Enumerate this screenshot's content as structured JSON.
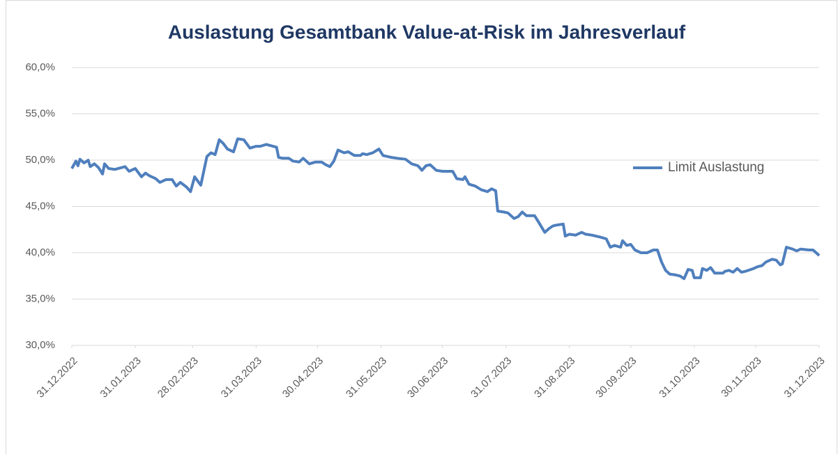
{
  "chart_data": {
    "type": "line",
    "title": "Auslastung Gesamtbank Value-at-Risk im Jahresverlauf",
    "x": [
      "31.12.2022",
      "02.01.2023",
      "03.01.2023",
      "04.01.2023",
      "06.01.2023",
      "08.01.2023",
      "09.01.2023",
      "11.01.2023",
      "13.01.2023",
      "15.01.2023",
      "16.01.2023",
      "18.01.2023",
      "21.01.2023",
      "26.01.2023",
      "28.01.2023",
      "31.01.2023",
      "03.02.2023",
      "05.02.2023",
      "07.02.2023",
      "10.02.2023",
      "12.02.2023",
      "15.02.2023",
      "18.02.2023",
      "20.02.2023",
      "22.02.2023",
      "25.02.2023",
      "27.02.2023",
      "01.03.2023",
      "04.03.2023",
      "07.03.2023",
      "09.03.2023",
      "11.03.2023",
      "13.03.2023",
      "15.03.2023",
      "17.03.2023",
      "20.03.2023",
      "22.03.2023",
      "25.03.2023",
      "28.03.2023",
      "31.03.2023",
      "02.04.2023",
      "05.04.2023",
      "10.04.2023",
      "11.04.2023",
      "13.04.2023",
      "16.04.2023",
      "18.04.2023",
      "21.04.2023",
      "23.04.2023",
      "26.04.2023",
      "29.04.2023",
      "02.05.2023",
      "04.05.2023",
      "06.05.2023",
      "08.05.2023",
      "10.05.2023",
      "13.05.2023",
      "15.05.2023",
      "18.05.2023",
      "21.05.2023",
      "22.05.2023",
      "24.05.2023",
      "27.05.2023",
      "30.05.2023",
      "01.06.2023",
      "05.06.2023",
      "08.06.2023",
      "12.06.2023",
      "15.06.2023",
      "18.06.2023",
      "20.06.2023",
      "22.06.2023",
      "24.06.2023",
      "27.06.2023",
      "30.06.2023",
      "05.07.2023",
      "07.07.2023",
      "10.07.2023",
      "11.07.2023",
      "13.07.2023",
      "16.07.2023",
      "19.07.2023",
      "22.07.2023",
      "24.07.2023",
      "26.07.2023",
      "27.07.2023",
      "30.07.2023",
      "01.08.2023",
      "04.08.2023",
      "06.08.2023",
      "08.08.2023",
      "10.08.2023",
      "14.08.2023",
      "16.08.2023",
      "19.08.2023",
      "21.08.2023",
      "23.08.2023",
      "25.08.2023",
      "28.08.2023",
      "29.08.2023",
      "31.08.2023",
      "03.09.2023",
      "06.09.2023",
      "08.09.2023",
      "11.09.2023",
      "15.09.2023",
      "18.09.2023",
      "20.09.2023",
      "22.09.2023",
      "25.09.2023",
      "26.09.2023",
      "28.09.2023",
      "30.09.2023",
      "02.10.2023",
      "05.10.2023",
      "08.10.2023",
      "11.10.2023",
      "13.10.2023",
      "15.10.2023",
      "17.10.2023",
      "19.10.2023",
      "22.10.2023",
      "24.10.2023",
      "26.10.2023",
      "28.10.2023",
      "30.10.2023",
      "31.10.2023",
      "03.11.2023",
      "04.11.2023",
      "06.11.2023",
      "08.11.2023",
      "10.11.2023",
      "14.11.2023",
      "15.11.2023",
      "17.11.2023",
      "19.11.2023",
      "21.11.2023",
      "23.11.2023",
      "25.11.2023",
      "29.11.2023",
      "01.12.2023",
      "03.12.2023",
      "05.12.2023",
      "08.12.2023",
      "10.12.2023",
      "12.12.2023",
      "13.12.2023",
      "15.12.2023",
      "18.12.2023",
      "20.12.2023",
      "22.12.2023",
      "26.12.2023",
      "28.12.2023",
      "30.12.2023",
      "31.12.2023"
    ],
    "series": [
      {
        "name": "Limit Auslastung",
        "color": "#4f7fbd",
        "values": [
          49.1,
          49.9,
          49.4,
          50.1,
          49.7,
          50.0,
          49.3,
          49.6,
          49.2,
          48.5,
          49.6,
          49.1,
          49.0,
          49.3,
          48.8,
          49.1,
          48.2,
          48.6,
          48.3,
          48.0,
          47.6,
          47.9,
          47.9,
          47.2,
          47.6,
          47.1,
          46.6,
          48.2,
          47.3,
          50.4,
          50.8,
          50.6,
          52.2,
          51.8,
          51.2,
          50.9,
          52.3,
          52.2,
          51.3,
          51.5,
          51.5,
          51.7,
          51.4,
          50.3,
          50.2,
          50.2,
          49.9,
          49.8,
          50.2,
          49.6,
          49.8,
          49.8,
          49.5,
          49.3,
          49.9,
          51.1,
          50.8,
          50.9,
          50.5,
          50.5,
          50.7,
          50.6,
          50.8,
          51.2,
          50.5,
          50.3,
          50.2,
          50.1,
          49.6,
          49.4,
          48.9,
          49.4,
          49.5,
          48.9,
          48.8,
          48.8,
          48.0,
          47.9,
          48.2,
          47.4,
          47.2,
          46.8,
          46.6,
          46.9,
          46.7,
          44.5,
          44.4,
          44.3,
          43.7,
          43.9,
          44.4,
          44.0,
          44.0,
          43.3,
          42.2,
          42.6,
          42.9,
          43.0,
          43.1,
          41.8,
          42.0,
          41.9,
          42.2,
          42.0,
          41.9,
          41.7,
          41.5,
          40.6,
          40.8,
          40.6,
          41.3,
          40.8,
          40.9,
          40.3,
          40.0,
          40.0,
          40.3,
          40.3,
          39.0,
          38.1,
          37.7,
          37.6,
          37.5,
          37.2,
          38.2,
          38.1,
          37.3,
          37.3,
          38.3,
          38.1,
          38.4,
          37.8,
          37.8,
          38.0,
          38.1,
          37.9,
          38.3,
          37.9,
          38.0,
          38.3,
          38.5,
          38.6,
          39.0,
          39.3,
          39.2,
          38.7,
          38.8,
          40.6,
          40.4,
          40.2,
          40.4,
          40.3,
          40.3,
          39.9,
          39.7
        ]
      }
    ],
    "xlim": [
      "31.12.2022",
      "31.12.2023"
    ],
    "xticks": [
      "31.12.2022",
      "31.01.2023",
      "28.02.2023",
      "31.03.2023",
      "30.04.2023",
      "31.05.2023",
      "30.06.2023",
      "31.07.2023",
      "31.08.2023",
      "30.09.2023",
      "31.10.2023",
      "30.11.2023",
      "31.12.2023"
    ],
    "ylim": [
      30,
      60
    ],
    "yticks": [
      {
        "value": 30,
        "label": "30,0%"
      },
      {
        "value": 35,
        "label": "35,0%"
      },
      {
        "value": 40,
        "label": "40,0%"
      },
      {
        "value": 45,
        "label": "45,0%"
      },
      {
        "value": 50,
        "label": "50,0%"
      },
      {
        "value": 55,
        "label": "55,0%"
      },
      {
        "value": 60,
        "label": "60,0%"
      }
    ],
    "grid": true,
    "legend": "right"
  }
}
